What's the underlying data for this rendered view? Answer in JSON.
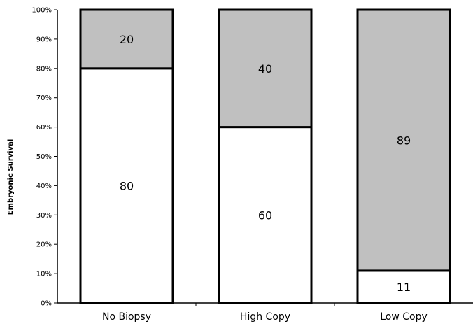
{
  "chart_data": {
    "type": "bar",
    "stacked": true,
    "categories": [
      "No Biopsy",
      "High Copy",
      "Low Copy"
    ],
    "series": [
      {
        "values": [
          80,
          60,
          11
        ],
        "color": "#ffffff"
      },
      {
        "values": [
          20,
          40,
          89
        ],
        "color": "#c0c0c0"
      }
    ],
    "title": "",
    "xlabel": "",
    "ylabel": "Embryonic Survival",
    "ylim": [
      0,
      100
    ],
    "yticks": [
      "0%",
      "10%",
      "20%",
      "30%",
      "40%",
      "50%",
      "60%",
      "70%",
      "80%",
      "90%",
      "100%"
    ],
    "data_labels": true,
    "grid": false,
    "legend": "none"
  }
}
